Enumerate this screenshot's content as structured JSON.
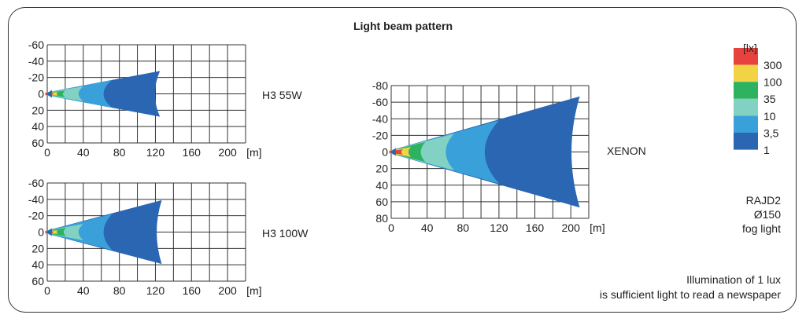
{
  "title": "Light beam pattern",
  "legend": {
    "unit": "[lx]",
    "levels": [
      "300",
      "100",
      "35",
      "10",
      "3,5",
      "1"
    ],
    "colors": [
      "#e8423f",
      "#f2d344",
      "#2db35f",
      "#82d2c4",
      "#3aa0da",
      "#2a66b2"
    ]
  },
  "product": {
    "line1": "RAJD2",
    "line2": "Ø150",
    "line3": "fog light"
  },
  "note": {
    "line1": "Illumination of 1 lux",
    "line2": "is sufficient light to read a newspaper"
  },
  "chart_data": [
    {
      "type": "area",
      "name": "H3 55W",
      "xlabel_unit": "[m]",
      "xlim": [
        0,
        220
      ],
      "ylim": [
        -60,
        60
      ],
      "xticks": [
        "0",
        "40",
        "80",
        "120",
        "160",
        "200"
      ],
      "yticks": [
        "-60",
        "-40",
        "-20",
        "0",
        "20",
        "40",
        "60"
      ],
      "zones": [
        {
          "lux": "1",
          "reach": 125,
          "half_width": 28
        },
        {
          "lux": "3,5",
          "reach": 72,
          "half_width": 17
        },
        {
          "lux": "10",
          "reach": 40,
          "half_width": 9
        },
        {
          "lux": "35",
          "reach": 20,
          "half_width": 4
        },
        {
          "lux": "100",
          "reach": 12,
          "half_width": 2
        },
        {
          "lux": "300",
          "reach": 7,
          "half_width": 1
        }
      ]
    },
    {
      "type": "area",
      "name": "H3 100W",
      "xlabel_unit": "[m]",
      "xlim": [
        0,
        220
      ],
      "ylim": [
        -60,
        60
      ],
      "xticks": [
        "0",
        "40",
        "80",
        "120",
        "160",
        "200"
      ],
      "yticks": [
        "-60",
        "-40",
        "-20",
        "0",
        "20",
        "40",
        "60"
      ],
      "zones": [
        {
          "lux": "1",
          "reach": 127,
          "half_width": 39
        },
        {
          "lux": "3,5",
          "reach": 72,
          "half_width": 22
        },
        {
          "lux": "10",
          "reach": 40,
          "half_width": 10
        },
        {
          "lux": "35",
          "reach": 21,
          "half_width": 5
        },
        {
          "lux": "100",
          "reach": 12,
          "half_width": 2
        },
        {
          "lux": "300",
          "reach": 7,
          "half_width": 1
        }
      ]
    },
    {
      "type": "area",
      "name": "XENON",
      "xlabel_unit": "[m]",
      "xlim": [
        0,
        220
      ],
      "ylim": [
        -80,
        80
      ],
      "xticks": [
        "0",
        "40",
        "80",
        "120",
        "160",
        "200"
      ],
      "yticks": [
        "-80",
        "-60",
        "-40",
        "-20",
        "0",
        "20",
        "40",
        "60",
        "80"
      ],
      "zones": [
        {
          "lux": "1",
          "reach": 210,
          "half_width": 67
        },
        {
          "lux": "3,5",
          "reach": 120,
          "half_width": 38
        },
        {
          "lux": "10",
          "reach": 70,
          "half_width": 22
        },
        {
          "lux": "35",
          "reach": 38,
          "half_width": 12
        },
        {
          "lux": "100",
          "reach": 22,
          "half_width": 6
        },
        {
          "lux": "300",
          "reach": 13,
          "half_width": 3
        }
      ]
    }
  ]
}
